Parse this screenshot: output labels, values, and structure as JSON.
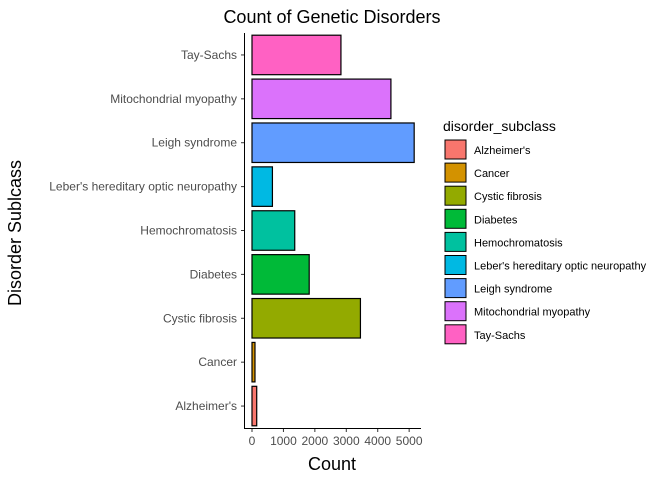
{
  "chart_data": {
    "type": "bar",
    "orientation": "horizontal",
    "title": "Count of Genetic Disorders",
    "xlabel": "Count",
    "ylabel": "Disorder Sublcass",
    "xlim": [
      0,
      5400
    ],
    "x_ticks": [
      0,
      1000,
      2000,
      3000,
      4000,
      5000
    ],
    "x_tick_labels": [
      "0",
      "1000",
      "2000",
      "3000",
      "4000",
      "5000"
    ],
    "grid": false,
    "legend": {
      "title": "disorder_subclass",
      "placement": "right",
      "entries": [
        "Alzheimer's",
        "Cancer",
        "Cystic fibrosis",
        "Diabetes",
        "Hemochromatosis",
        "Leber's hereditary optic neuropathy",
        "Leigh syndrome",
        "Mitochondrial myopathy",
        "Tay-Sachs"
      ]
    },
    "categories": [
      "Alzheimer's",
      "Cancer",
      "Cystic fibrosis",
      "Diabetes",
      "Hemochromatosis",
      "Leber's hereditary optic neuropathy",
      "Leigh syndrome",
      "Mitochondrial myopathy",
      "Tay-Sachs"
    ],
    "values": [
      150,
      95,
      3450,
      1820,
      1360,
      650,
      5160,
      4420,
      2830
    ],
    "colors": [
      "#F8766D",
      "#D39200",
      "#93AA00",
      "#00BA38",
      "#00C19F",
      "#00B9E3",
      "#619CFF",
      "#DB72FB",
      "#FF61C3"
    ]
  }
}
